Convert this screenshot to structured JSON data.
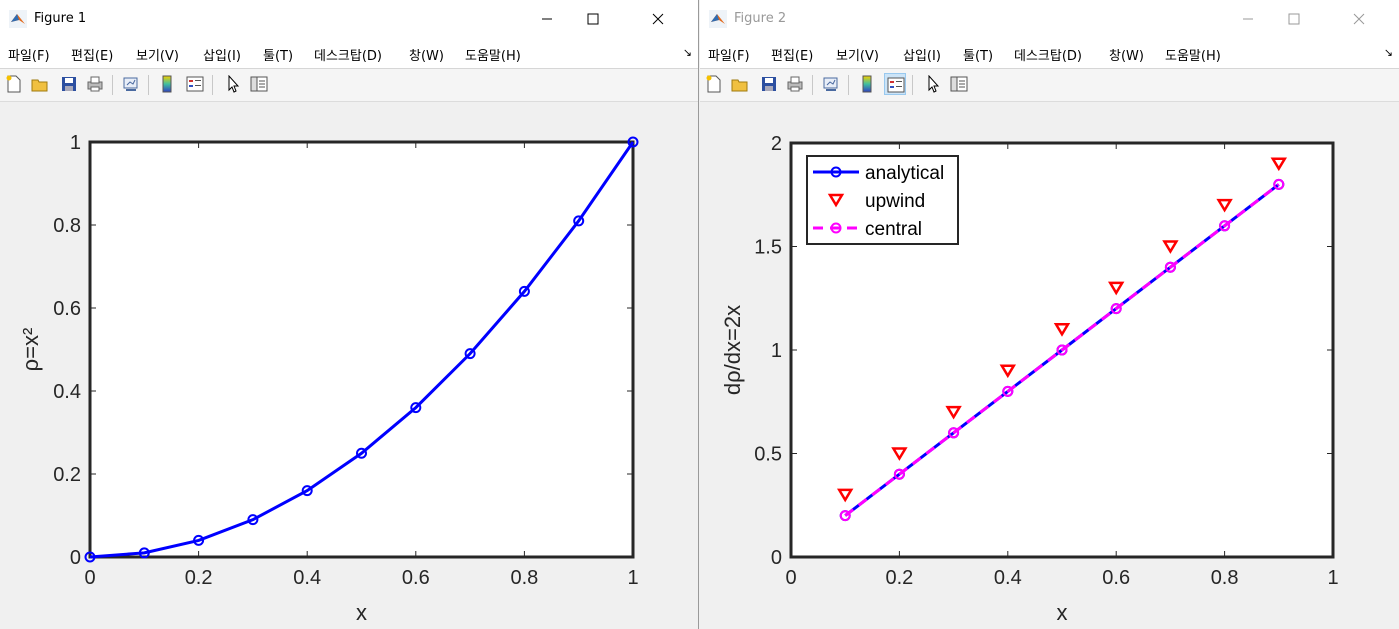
{
  "figure1": {
    "title": "Figure 1",
    "menu": [
      "파일(F)",
      "편집(E)",
      "보기(V)",
      "삽입(I)",
      "툴(T)",
      "데스크탑(D)",
      "창(W)",
      "도움말(H)"
    ]
  },
  "figure2": {
    "title": "Figure 2",
    "menu": [
      "파일(F)",
      "편집(E)",
      "보기(V)",
      "삽입(I)",
      "툴(T)",
      "데스크탑(D)",
      "창(W)",
      "도움말(H)"
    ]
  },
  "icons": {
    "app": "matlab-logo-icon",
    "toolbar": [
      "new-figure-icon",
      "open-file-icon",
      "save-icon",
      "print-icon",
      "link-plot-icon",
      "colorbar-icon",
      "legend-icon",
      "edit-plot-arrow-icon",
      "property-inspector-icon"
    ]
  },
  "chart_data": [
    {
      "type": "line",
      "xlabel": "x",
      "ylabel": "ρ=x²",
      "xlim": [
        0,
        1
      ],
      "ylim": [
        0,
        1
      ],
      "xticks": [
        "0",
        "0.2",
        "0.4",
        "0.6",
        "0.8",
        "1"
      ],
      "yticks": [
        "0",
        "0.2",
        "0.4",
        "0.6",
        "0.8",
        "1"
      ],
      "grid": false,
      "series": [
        {
          "color": "#0000ff",
          "marker": "circle",
          "x": [
            0,
            0.1,
            0.2,
            0.3,
            0.4,
            0.5,
            0.6,
            0.7,
            0.8,
            0.9,
            1.0
          ],
          "y": [
            0,
            0.01,
            0.04,
            0.09,
            0.16,
            0.25,
            0.36,
            0.49,
            0.64,
            0.81,
            1.0
          ]
        }
      ]
    },
    {
      "type": "line",
      "xlabel": "x",
      "ylabel": "dρ/dx=2x",
      "xlim": [
        0,
        1
      ],
      "ylim": [
        0,
        2
      ],
      "xticks": [
        "0",
        "0.2",
        "0.4",
        "0.6",
        "0.8",
        "1"
      ],
      "yticks": [
        "0",
        "0.5",
        "1",
        "1.5",
        "2"
      ],
      "grid": false,
      "legend_position": "top-left",
      "series": [
        {
          "name": "analytical",
          "color": "#0000ff",
          "marker": "circle",
          "line": "solid",
          "x": [
            0.1,
            0.2,
            0.3,
            0.4,
            0.5,
            0.6,
            0.7,
            0.8,
            0.9
          ],
          "y": [
            0.2,
            0.4,
            0.6,
            0.8,
            1.0,
            1.2,
            1.4,
            1.6,
            1.8
          ]
        },
        {
          "name": "upwind",
          "color": "#ff0000",
          "marker": "triangle-down",
          "line": "none",
          "x": [
            0.1,
            0.2,
            0.3,
            0.4,
            0.5,
            0.6,
            0.7,
            0.8,
            0.9
          ],
          "y": [
            0.3,
            0.5,
            0.7,
            0.9,
            1.1,
            1.3,
            1.5,
            1.7,
            1.9
          ]
        },
        {
          "name": "central",
          "color": "#ff00ff",
          "marker": "circle",
          "line": "dashed",
          "x": [
            0.1,
            0.2,
            0.3,
            0.4,
            0.5,
            0.6,
            0.7,
            0.8,
            0.9
          ],
          "y": [
            0.2,
            0.4,
            0.6,
            0.8,
            1.0,
            1.2,
            1.4,
            1.6,
            1.8
          ]
        }
      ]
    }
  ]
}
